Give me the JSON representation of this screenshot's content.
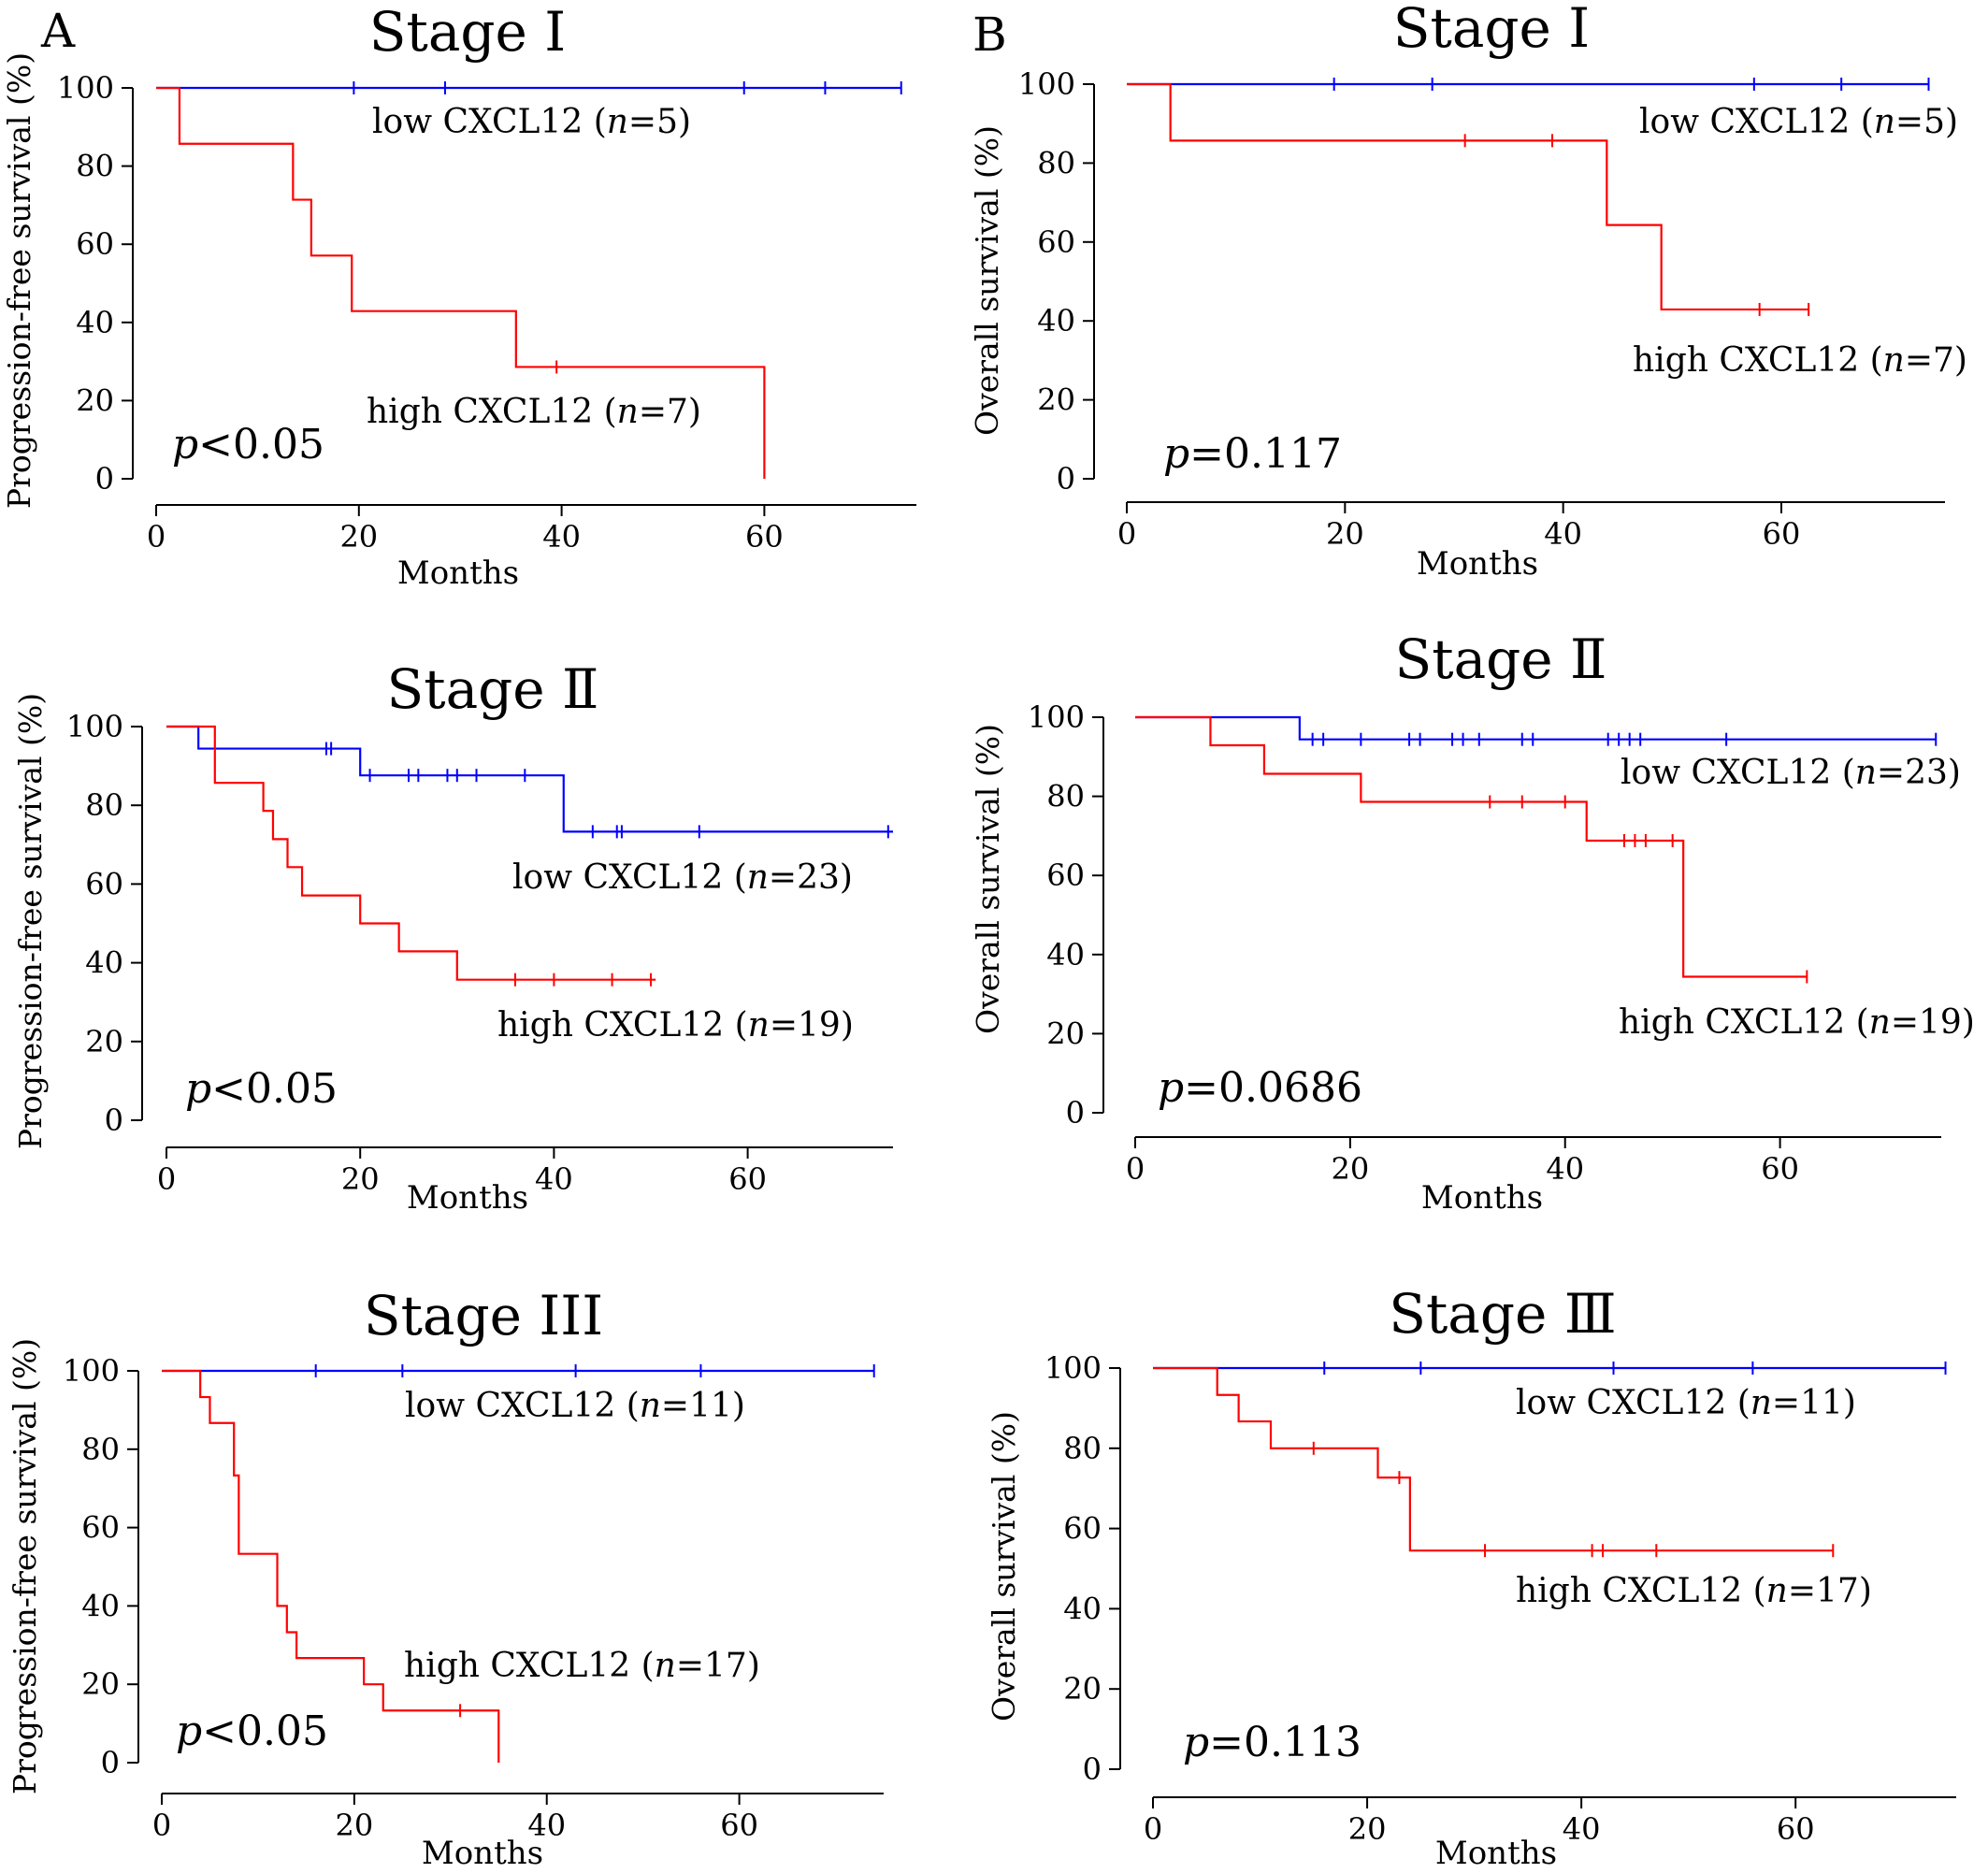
{
  "panel_labels": [
    "A",
    "B"
  ],
  "colors": {
    "low": "#0000ff",
    "high": "#ff0000"
  },
  "chart_data": [
    {
      "type": "line",
      "step": true,
      "panel": "A",
      "title": "Stage Ⅰ",
      "xlabel": "Months",
      "ylabel": "Progression-free survival (%)",
      "xlim": [
        0,
        75
      ],
      "ylim": [
        0,
        100
      ],
      "xticks": [
        0,
        20,
        40,
        60
      ],
      "yticks": [
        0,
        20,
        40,
        60,
        80,
        100
      ],
      "pvalue": "<0.05",
      "series": [
        {
          "name": "low CXCL12",
          "n": "=5",
          "group": "low",
          "x": [
            0,
            73.5
          ],
          "y": [
            100,
            100
          ],
          "censored": [
            19.5,
            28.5,
            58,
            66,
            73.5
          ]
        },
        {
          "name": "high CXCL12",
          "n": "=7",
          "group": "high",
          "x": [
            0,
            2.3,
            13.5,
            15.3,
            19.3,
            35.5,
            60,
            60
          ],
          "y": [
            100,
            85.7,
            71.4,
            57.1,
            42.9,
            28.6,
            28.6,
            0
          ],
          "censored": [
            39.5
          ]
        }
      ]
    },
    {
      "type": "line",
      "step": true,
      "panel": "B",
      "title": "Stage Ⅰ",
      "xlabel": "Months",
      "ylabel": "Overall survival (%)",
      "xlim": [
        0,
        75
      ],
      "ylim": [
        0,
        100
      ],
      "xticks": [
        0,
        20,
        40,
        60
      ],
      "yticks": [
        0,
        20,
        40,
        60,
        80,
        100
      ],
      "pvalue": "=0.117",
      "series": [
        {
          "name": "low CXCL12",
          "n": "=5",
          "group": "low",
          "x": [
            0,
            73.5
          ],
          "y": [
            100,
            100
          ],
          "censored": [
            19,
            28,
            57.5,
            65.5,
            73.5
          ]
        },
        {
          "name": "high CXCL12",
          "n": "=7",
          "group": "high",
          "x": [
            0,
            4,
            44,
            49,
            62.5
          ],
          "y": [
            100,
            85.7,
            64.3,
            42.9,
            42.9
          ],
          "censored": [
            31,
            39,
            58,
            62.5
          ]
        }
      ]
    },
    {
      "type": "line",
      "step": true,
      "panel": "A",
      "title": "Stage Ⅱ",
      "xlabel": "Months",
      "ylabel": "Progression-free survival (%)",
      "xlim": [
        0,
        75
      ],
      "ylim": [
        0,
        100
      ],
      "xticks": [
        0,
        20,
        40,
        60
      ],
      "yticks": [
        0,
        20,
        40,
        60,
        80,
        100
      ],
      "pvalue": "<0.05",
      "series": [
        {
          "name": "low CXCL12",
          "n": "=23",
          "group": "low",
          "x": [
            0,
            3.3,
            20,
            41,
            75
          ],
          "y": [
            100,
            94.4,
            87.6,
            73.3,
            73.3
          ],
          "censored": [
            16.5,
            17,
            21,
            25,
            26,
            29,
            30,
            32,
            37,
            44,
            46.5,
            47,
            55,
            74.5
          ]
        },
        {
          "name": "high CXCL12",
          "n": "=19",
          "group": "high",
          "x": [
            0,
            5,
            10,
            11,
            12.5,
            14,
            20,
            24,
            30,
            50.5
          ],
          "y": [
            100,
            85.7,
            78.6,
            71.4,
            64.3,
            57.1,
            50,
            42.9,
            35.7,
            35.7
          ],
          "censored": [
            36,
            40,
            46,
            50
          ]
        }
      ]
    },
    {
      "type": "line",
      "step": true,
      "panel": "B",
      "title": "Stage Ⅱ",
      "xlabel": "Months",
      "ylabel": "Overall survival (%)",
      "xlim": [
        0,
        75
      ],
      "ylim": [
        0,
        100
      ],
      "xticks": [
        0,
        20,
        40,
        60
      ],
      "yticks": [
        0,
        20,
        40,
        60,
        80,
        100
      ],
      "pvalue": "=0.0686",
      "series": [
        {
          "name": "low CXCL12",
          "n": "=23",
          "group": "low",
          "x": [
            0,
            15.3,
            74.5
          ],
          "y": [
            100,
            94.4,
            94.4
          ],
          "censored": [
            16.5,
            17.5,
            21,
            25.5,
            26.5,
            29.5,
            30.5,
            32,
            36,
            37,
            44,
            45,
            46,
            47,
            55,
            74.5
          ]
        },
        {
          "name": "high CXCL12",
          "n": "=19",
          "group": "high",
          "x": [
            0,
            7,
            12,
            21,
            42,
            51,
            62.5
          ],
          "y": [
            100,
            92.9,
            85.7,
            78.6,
            68.8,
            34.4,
            34.4
          ],
          "censored": [
            33,
            36,
            40,
            45.5,
            46.5,
            47.5,
            50,
            62.5
          ]
        }
      ]
    },
    {
      "type": "line",
      "step": true,
      "panel": "A",
      "title": "Stage III",
      "xlabel": "Months",
      "ylabel": "Progression-free survival (%)",
      "xlim": [
        0,
        75
      ],
      "ylim": [
        0,
        100
      ],
      "xticks": [
        0,
        20,
        40,
        60
      ],
      "yticks": [
        0,
        20,
        40,
        60,
        80,
        100
      ],
      "pvalue": "<0.05",
      "series": [
        {
          "name": "low CXCL12",
          "n": "=11",
          "group": "low",
          "x": [
            0,
            74
          ],
          "y": [
            100,
            100
          ],
          "censored": [
            16,
            25,
            43,
            56,
            74
          ]
        },
        {
          "name": "high CXCL12",
          "n": "=17",
          "group": "high",
          "x": [
            0,
            4,
            5,
            6,
            7.5,
            8,
            12,
            13,
            14,
            21,
            23,
            35,
            35
          ],
          "y": [
            100,
            93.3,
            86.7,
            86.7,
            73.3,
            53.3,
            40,
            33.3,
            26.7,
            20,
            13.3,
            13.3,
            0
          ],
          "censored": [
            31
          ]
        }
      ]
    },
    {
      "type": "line",
      "step": true,
      "panel": "B",
      "title": "Stage Ⅲ",
      "xlabel": "Months",
      "ylabel": "Overall survival (%)",
      "xlim": [
        0,
        75
      ],
      "ylim": [
        0,
        100
      ],
      "xticks": [
        0,
        20,
        40,
        60
      ],
      "yticks": [
        0,
        20,
        40,
        60,
        80,
        100
      ],
      "pvalue": "=0.113",
      "series": [
        {
          "name": "low CXCL12",
          "n": "=11",
          "group": "low",
          "x": [
            0,
            74
          ],
          "y": [
            100,
            100
          ],
          "censored": [
            16,
            25,
            43,
            56,
            74
          ]
        },
        {
          "name": "high CXCL12",
          "n": "=17",
          "group": "high",
          "x": [
            0,
            6,
            8,
            11,
            21,
            24,
            63.5
          ],
          "y": [
            100,
            93.3,
            86.7,
            80,
            72.7,
            54.5,
            54.5
          ],
          "censored": [
            15,
            23,
            31,
            41,
            42,
            47,
            63.5
          ]
        }
      ]
    }
  ]
}
